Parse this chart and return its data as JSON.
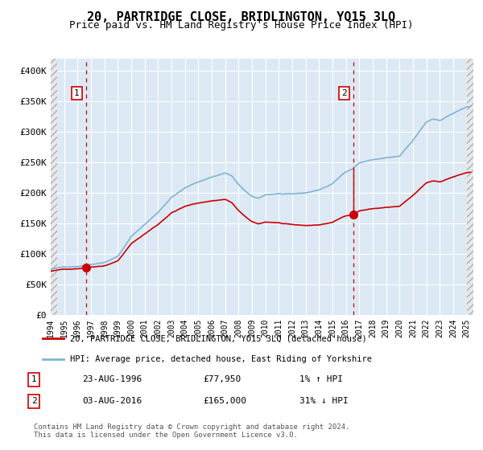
{
  "title": "20, PARTRIDGE CLOSE, BRIDLINGTON, YO15 3LQ",
  "subtitle": "Price paid vs. HM Land Registry's House Price Index (HPI)",
  "xlabel": "",
  "ylabel": "",
  "ylim": [
    0,
    420000
  ],
  "yticks": [
    0,
    50000,
    100000,
    150000,
    200000,
    250000,
    300000,
    350000,
    400000
  ],
  "ytick_labels": [
    "£0",
    "£50K",
    "£100K",
    "£150K",
    "£200K",
    "£250K",
    "£300K",
    "£350K",
    "£400K"
  ],
  "xlim_start": 1994.0,
  "xlim_end": 2025.5,
  "xticks": [
    1994,
    1995,
    1996,
    1997,
    1998,
    1999,
    2000,
    2001,
    2002,
    2003,
    2004,
    2005,
    2006,
    2007,
    2008,
    2009,
    2010,
    2011,
    2012,
    2013,
    2014,
    2015,
    2016,
    2017,
    2018,
    2019,
    2020,
    2021,
    2022,
    2023,
    2024,
    2025
  ],
  "hpi_color": "#7fb3d3",
  "price_color": "#cc0000",
  "sale1_date": 1996.648,
  "sale1_price": 77950,
  "sale1_label": "1",
  "sale2_date": 2016.587,
  "sale2_price": 165000,
  "sale2_label": "2",
  "bg_color": "#dce9f5",
  "hatch_color": "#c0c0c0",
  "grid_color": "#ffffff",
  "vline_color": "#cc0000",
  "legend_label_red": "20, PARTRIDGE CLOSE, BRIDLINGTON, YO15 3LQ (detached house)",
  "legend_label_blue": "HPI: Average price, detached house, East Riding of Yorkshire",
  "footnote": "Contains HM Land Registry data © Crown copyright and database right 2024.\nThis data is licensed under the Open Government Licence v3.0.",
  "annot1_date": "23-AUG-1996",
  "annot1_price": "£77,950",
  "annot1_hpi": "1% ↑ HPI",
  "annot2_date": "03-AUG-2016",
  "annot2_price": "£165,000",
  "annot2_hpi": "31% ↓ HPI"
}
